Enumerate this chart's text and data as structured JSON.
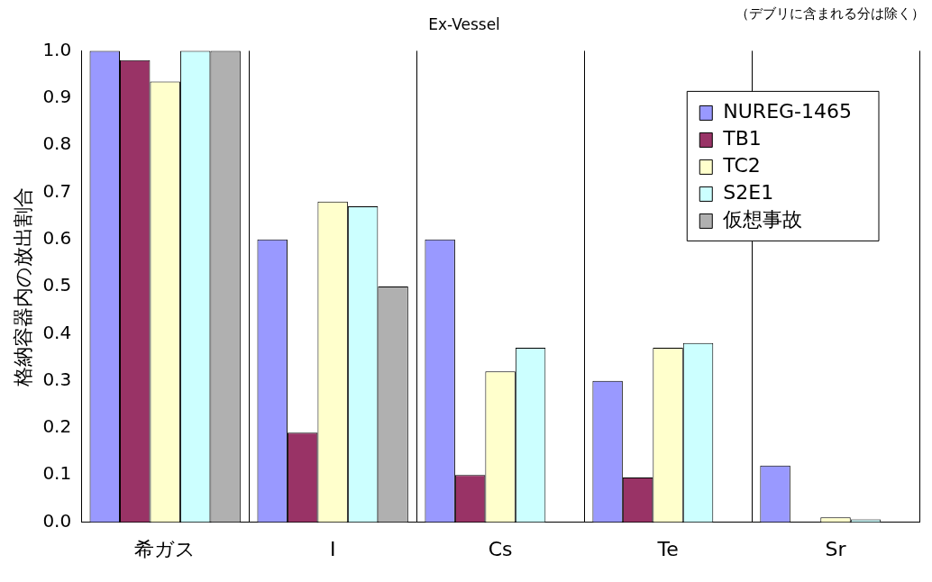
{
  "chart_data": {
    "type": "bar",
    "title": "Ex-Vessel",
    "ylabel": "格納容器内の放出割合",
    "annotations": [
      "（デブリに含まれる分は除く）"
    ],
    "categories": [
      "希ガス",
      "I",
      "Cs",
      "Te",
      "Sr"
    ],
    "series": [
      {
        "name": "NUREG-1465",
        "color": "#9999ff",
        "values": [
          1.0,
          0.6,
          0.6,
          0.3,
          0.12
        ]
      },
      {
        "name": "TB1",
        "color": "#993366",
        "values": [
          0.98,
          0.19,
          0.1,
          0.095,
          null
        ]
      },
      {
        "name": "TC2",
        "color": "#ffffcc",
        "values": [
          0.935,
          0.68,
          0.32,
          0.37,
          0.01
        ]
      },
      {
        "name": "S2E1",
        "color": "#ccffff",
        "values": [
          1.0,
          0.67,
          0.37,
          0.38,
          0.006
        ]
      },
      {
        "name": "仮想事故",
        "color": "#b0b0b0",
        "values": [
          1.0,
          0.5,
          null,
          null,
          null
        ]
      }
    ],
    "ylim": [
      0,
      1
    ],
    "yticks": [
      {
        "value": 0,
        "label": "0.0"
      },
      {
        "value": 0.1,
        "label": "0.1"
      },
      {
        "value": 0.2,
        "label": "0.2"
      },
      {
        "value": 0.3,
        "label": "0.3"
      },
      {
        "value": 0.4,
        "label": "0.4"
      },
      {
        "value": 0.5,
        "label": "0.5"
      },
      {
        "value": 0.6,
        "label": "0.6"
      },
      {
        "value": 0.7,
        "label": "0.7"
      },
      {
        "value": 0.8,
        "label": "0.8"
      },
      {
        "value": 0.9,
        "label": "0.9"
      },
      {
        "value": 1,
        "label": "1.0"
      }
    ],
    "grid": "x",
    "legend": "top right"
  }
}
